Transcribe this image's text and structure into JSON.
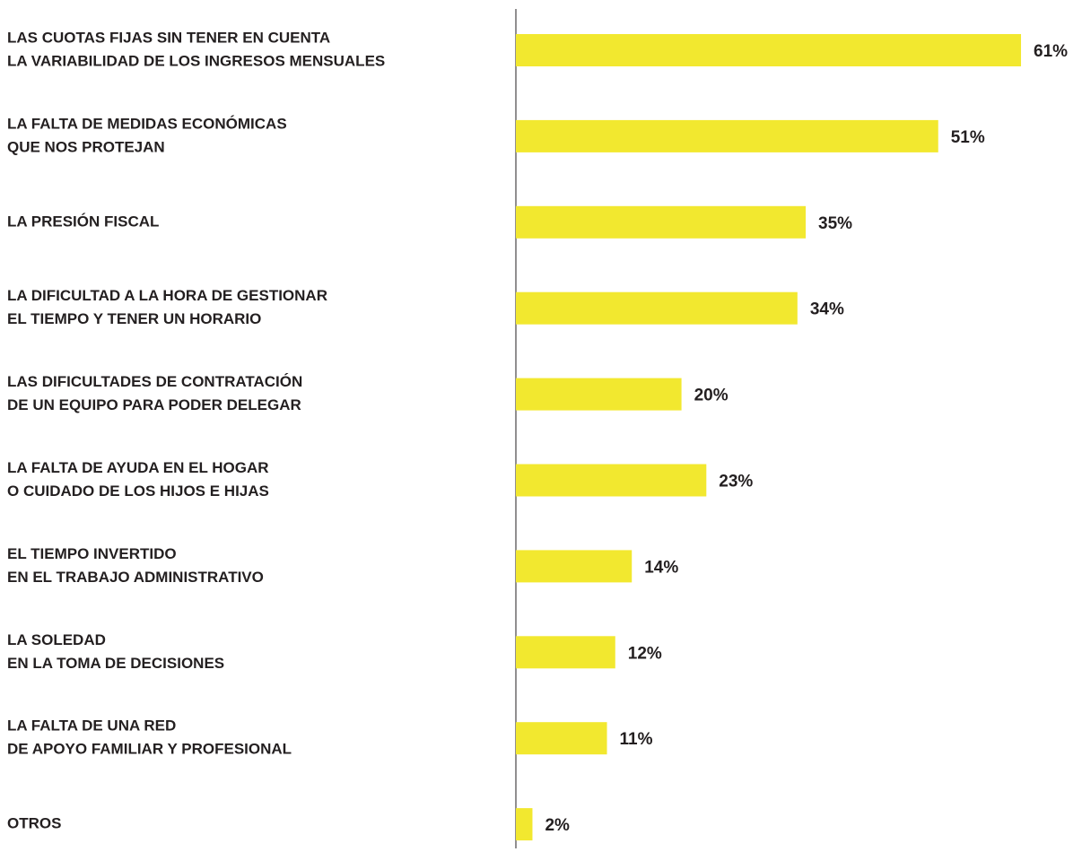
{
  "chart_data": {
    "type": "bar",
    "orientation": "horizontal",
    "categories": [
      [
        "LAS CUOTAS FIJAS SIN TENER EN CUENTA",
        "LA VARIABILIDAD DE LOS INGRESOS MENSUALES"
      ],
      [
        "LA FALTA DE MEDIDAS ECONÓMICAS",
        "QUE NOS PROTEJAN"
      ],
      [
        "LA PRESIÓN FISCAL"
      ],
      [
        "LA DIFICULTAD A LA HORA DE GESTIONAR",
        "EL TIEMPO Y TENER UN HORARIO"
      ],
      [
        "LAS DIFICULTADES DE CONTRATACIÓN",
        "DE UN EQUIPO PARA PODER DELEGAR"
      ],
      [
        "LA FALTA DE AYUDA EN EL HOGAR",
        "O CUIDADO DE LOS HIJOS E HIJAS"
      ],
      [
        "EL TIEMPO INVERTIDO",
        "EN EL TRABAJO ADMINISTRATIVO"
      ],
      [
        "LA SOLEDAD",
        "EN LA TOMA DE DECISIONES"
      ],
      [
        "LA FALTA DE UNA RED",
        "DE APOYO FAMILIAR Y PROFESIONAL"
      ],
      [
        "OTROS"
      ]
    ],
    "values": [
      61,
      51,
      35,
      34,
      20,
      23,
      14,
      12,
      11,
      2
    ],
    "value_labels": [
      "61%",
      "51%",
      "35%",
      "34%",
      "20%",
      "23%",
      "14%",
      "12%",
      "11%",
      "2%"
    ],
    "color": "#f2e82f"
  }
}
